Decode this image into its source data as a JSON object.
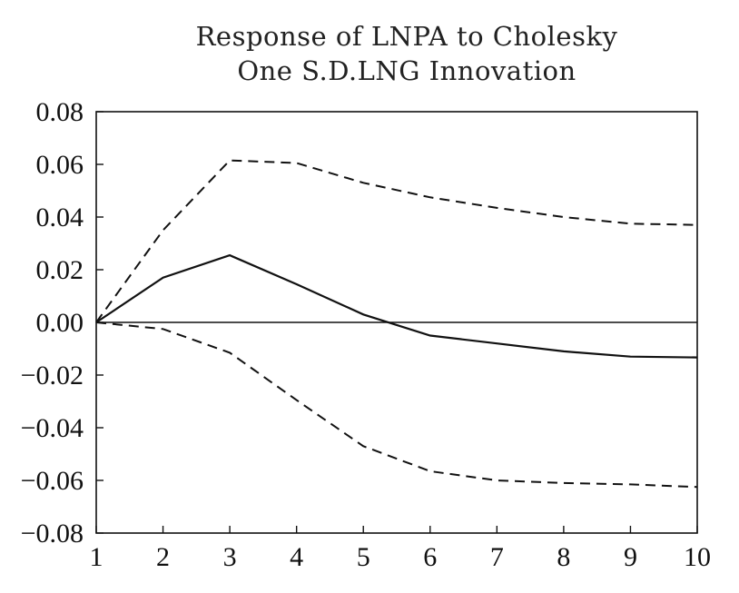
{
  "chart_data": {
    "type": "line",
    "title": [
      "Response of LNPA to Cholesky",
      "One S.D.LNG Innovation"
    ],
    "xlabel": "",
    "ylabel": "",
    "x": [
      1,
      2,
      3,
      4,
      5,
      6,
      7,
      8,
      9,
      10
    ],
    "xticks": [
      "1",
      "2",
      "3",
      "4",
      "5",
      "6",
      "7",
      "8",
      "9",
      "10"
    ],
    "ylim": [
      -0.08,
      0.08
    ],
    "yticks": [
      "0.08",
      "0.06",
      "0.04",
      "0.02",
      "0.00",
      "−0.02",
      "−0.04",
      "−0.06",
      "−0.08"
    ],
    "ytick_values": [
      0.08,
      0.06,
      0.04,
      0.02,
      0.0,
      -0.02,
      -0.04,
      -0.06,
      -0.08
    ],
    "grid": false,
    "series": [
      {
        "style": "solid",
        "values": [
          0.0,
          0.017,
          0.0255,
          0.0145,
          0.003,
          -0.005,
          -0.008,
          -0.011,
          -0.013,
          -0.0133
        ]
      },
      {
        "style": "dashed",
        "values": [
          0.0,
          0.035,
          0.0615,
          0.0605,
          0.053,
          0.0475,
          0.0435,
          0.04,
          0.0375,
          0.037
        ]
      },
      {
        "style": "dashed",
        "values": [
          0.0,
          -0.0025,
          -0.0115,
          -0.0295,
          -0.047,
          -0.0565,
          -0.06,
          -0.061,
          -0.0615,
          -0.0625
        ]
      }
    ]
  }
}
